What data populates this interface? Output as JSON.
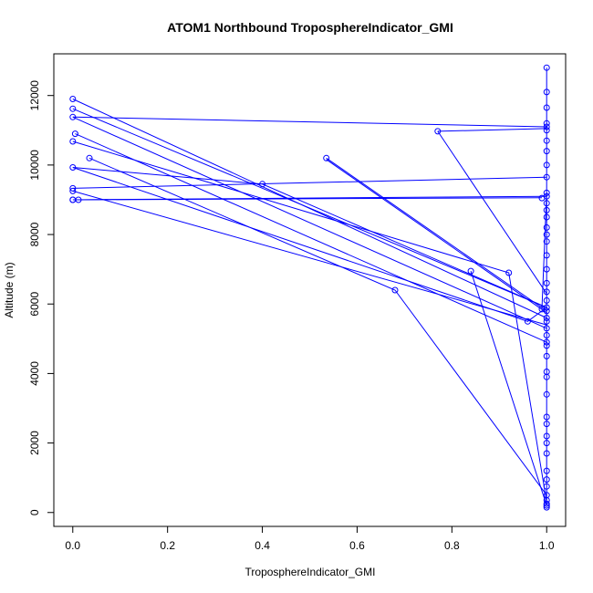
{
  "chart_data": {
    "type": "line",
    "title": "ATOM1 Northbound TroposphereIndicator_GMI",
    "xlabel": "TroposphereIndicator_GMI",
    "ylabel": "Altitude (m)",
    "xlim": [
      -0.04,
      1.04
    ],
    "ylim": [
      -400,
      13200
    ],
    "xticks": [
      0.0,
      0.2,
      0.4,
      0.6,
      0.8,
      1.0
    ],
    "xtick_labels": [
      "0.0",
      "0.2",
      "0.4",
      "0.6",
      "0.8",
      "1.0"
    ],
    "yticks": [
      0,
      2000,
      4000,
      6000,
      8000,
      10000,
      12000
    ],
    "ytick_labels": [
      "0",
      "2000",
      "4000",
      "6000",
      "8000",
      "10000",
      "12000"
    ],
    "grid": false,
    "color": "#0000ff",
    "marker": "open-circle",
    "series": [
      {
        "x": [
          1.0,
          1.0
        ],
        "y": [
          12800,
          200
        ]
      },
      {
        "x": [
          0.0,
          1.0
        ],
        "y": [
          11900,
          5600
        ]
      },
      {
        "x": [
          0.0,
          1.0
        ],
        "y": [
          11620,
          5900
        ]
      },
      {
        "x": [
          0.0,
          1.0
        ],
        "y": [
          11380,
          11100
        ]
      },
      {
        "x": [
          0.0,
          1.0
        ],
        "y": [
          11380,
          5300
        ]
      },
      {
        "x": [
          0.005,
          1.0
        ],
        "y": [
          10900,
          4900
        ]
      },
      {
        "x": [
          0.0,
          0.92,
          1.0
        ],
        "y": [
          10680,
          6900,
          300
        ]
      },
      {
        "x": [
          0.035,
          0.68,
          1.0
        ],
        "y": [
          10200,
          6400,
          500
        ]
      },
      {
        "x": [
          0.0,
          0.96,
          1.0
        ],
        "y": [
          9930,
          5500,
          5900
        ]
      },
      {
        "x": [
          0.0,
          0.4,
          1.0
        ],
        "y": [
          9930,
          9450,
          5900
        ]
      },
      {
        "x": [
          0.0,
          1.0
        ],
        "y": [
          9330,
          9650
        ]
      },
      {
        "x": [
          0.0,
          1.0
        ],
        "y": [
          9250,
          5400
        ]
      },
      {
        "x": [
          0.0,
          1.0
        ],
        "y": [
          9000,
          9100
        ]
      },
      {
        "x": [
          0.012,
          0.99
        ],
        "y": [
          9000,
          9060
        ]
      },
      {
        "x": [
          0.535,
          1.0
        ],
        "y": [
          10200,
          5800
        ]
      },
      {
        "x": [
          0.535,
          1.0
        ],
        "y": [
          10160,
          5750
        ]
      },
      {
        "x": [
          0.77,
          1.0
        ],
        "y": [
          10970,
          11050
        ]
      },
      {
        "x": [
          0.77,
          1.0
        ],
        "y": [
          10970,
          6300
        ]
      },
      {
        "x": [
          0.84,
          1.0
        ],
        "y": [
          6950,
          200
        ]
      },
      {
        "x": [
          0.99,
          1.0
        ],
        "y": [
          5850,
          9200
        ]
      }
    ],
    "markers": {
      "x": [
        0.0,
        0.0,
        0.0,
        0.0,
        0.005,
        0.0,
        0.035,
        0.0,
        0.0,
        0.0,
        0.0,
        0.012,
        0.4,
        0.535,
        0.77,
        0.68,
        0.84,
        0.92,
        0.96,
        0.99,
        0.99,
        1.0,
        1.0,
        1.0,
        1.0,
        1.0,
        1.0,
        1.0,
        1.0,
        1.0,
        1.0,
        1.0,
        1.0,
        1.0,
        1.0,
        1.0,
        1.0,
        1.0,
        1.0,
        1.0,
        1.0,
        1.0,
        1.0,
        1.0,
        1.0,
        1.0,
        1.0,
        1.0,
        1.0,
        1.0,
        1.0,
        1.0,
        1.0,
        1.0,
        1.0,
        1.0,
        1.0,
        1.0,
        1.0,
        1.0,
        1.0,
        1.0,
        1.0,
        1.0,
        1.0,
        1.0,
        1.0,
        1.0,
        1.0
      ],
      "y": [
        11900,
        11620,
        11380,
        10680,
        10900,
        9930,
        10200,
        9330,
        9250,
        9000,
        9000,
        9000,
        9450,
        10200,
        10970,
        6400,
        6950,
        6900,
        5500,
        5850,
        9050,
        12800,
        12100,
        11650,
        11200,
        11100,
        11000,
        10700,
        10400,
        10000,
        9650,
        9200,
        9100,
        8900,
        8700,
        8500,
        8200,
        8000,
        7800,
        7400,
        7000,
        6600,
        6350,
        6100,
        5900,
        5800,
        5600,
        5500,
        5300,
        5100,
        4900,
        4800,
        4500,
        4050,
        3900,
        3400,
        2750,
        2550,
        2200,
        2000,
        1700,
        1200,
        950,
        750,
        500,
        350,
        250,
        200,
        150
      ]
    }
  }
}
